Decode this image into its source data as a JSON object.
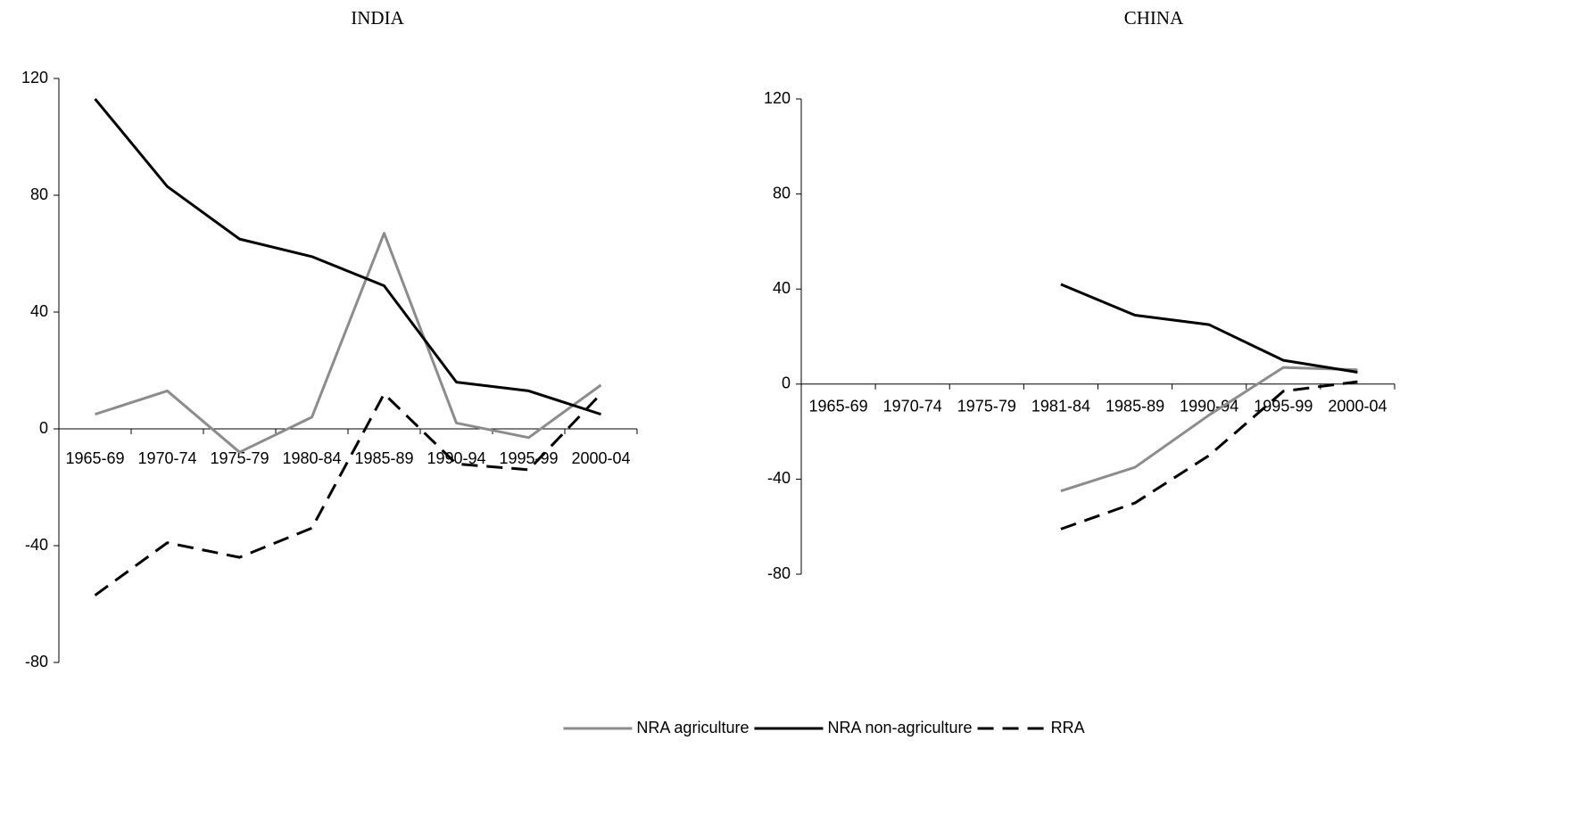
{
  "chart_data": [
    {
      "type": "line",
      "title": "INDIA",
      "categories": [
        "1965-69",
        "1970-74",
        "1975-79",
        "1980-84",
        "1985-89",
        "1990-94",
        "1995-99",
        "2000-04"
      ],
      "series": [
        {
          "name": "NRA agriculture",
          "color": "#8c8c8c",
          "dash": false,
          "values": [
            5,
            13,
            -8,
            4,
            67,
            2,
            -3,
            15
          ]
        },
        {
          "name": "NRA non-agriculture",
          "color": "#000000",
          "dash": false,
          "values": [
            113,
            83,
            65,
            59,
            49,
            16,
            13,
            5
          ]
        },
        {
          "name": "RRA",
          "color": "#000000",
          "dash": true,
          "values": [
            -57,
            -39,
            -44,
            -34,
            12,
            -12,
            -14,
            12
          ]
        }
      ],
      "ylim": [
        -80,
        120
      ],
      "yticks": [
        120,
        80,
        40,
        0,
        -40,
        -80
      ]
    },
    {
      "type": "line",
      "title": "CHINA",
      "categories": [
        "1965-69",
        "1970-74",
        "1975-79",
        "1981-84",
        "1985-89",
        "1990-94",
        "1995-99",
        "2000-04"
      ],
      "series": [
        {
          "name": "NRA agriculture",
          "color": "#8c8c8c",
          "dash": false,
          "values": [
            null,
            null,
            null,
            -45,
            -35,
            -13,
            7,
            6
          ]
        },
        {
          "name": "NRA non-agriculture",
          "color": "#000000",
          "dash": false,
          "values": [
            null,
            null,
            null,
            42,
            29,
            25,
            10,
            5
          ]
        },
        {
          "name": "RRA",
          "color": "#000000",
          "dash": true,
          "values": [
            null,
            null,
            null,
            -61,
            -50,
            -30,
            -3,
            1
          ]
        }
      ],
      "ylim": [
        -80,
        120
      ],
      "yticks": [
        120,
        80,
        40,
        0,
        -40,
        -80
      ]
    }
  ]
}
